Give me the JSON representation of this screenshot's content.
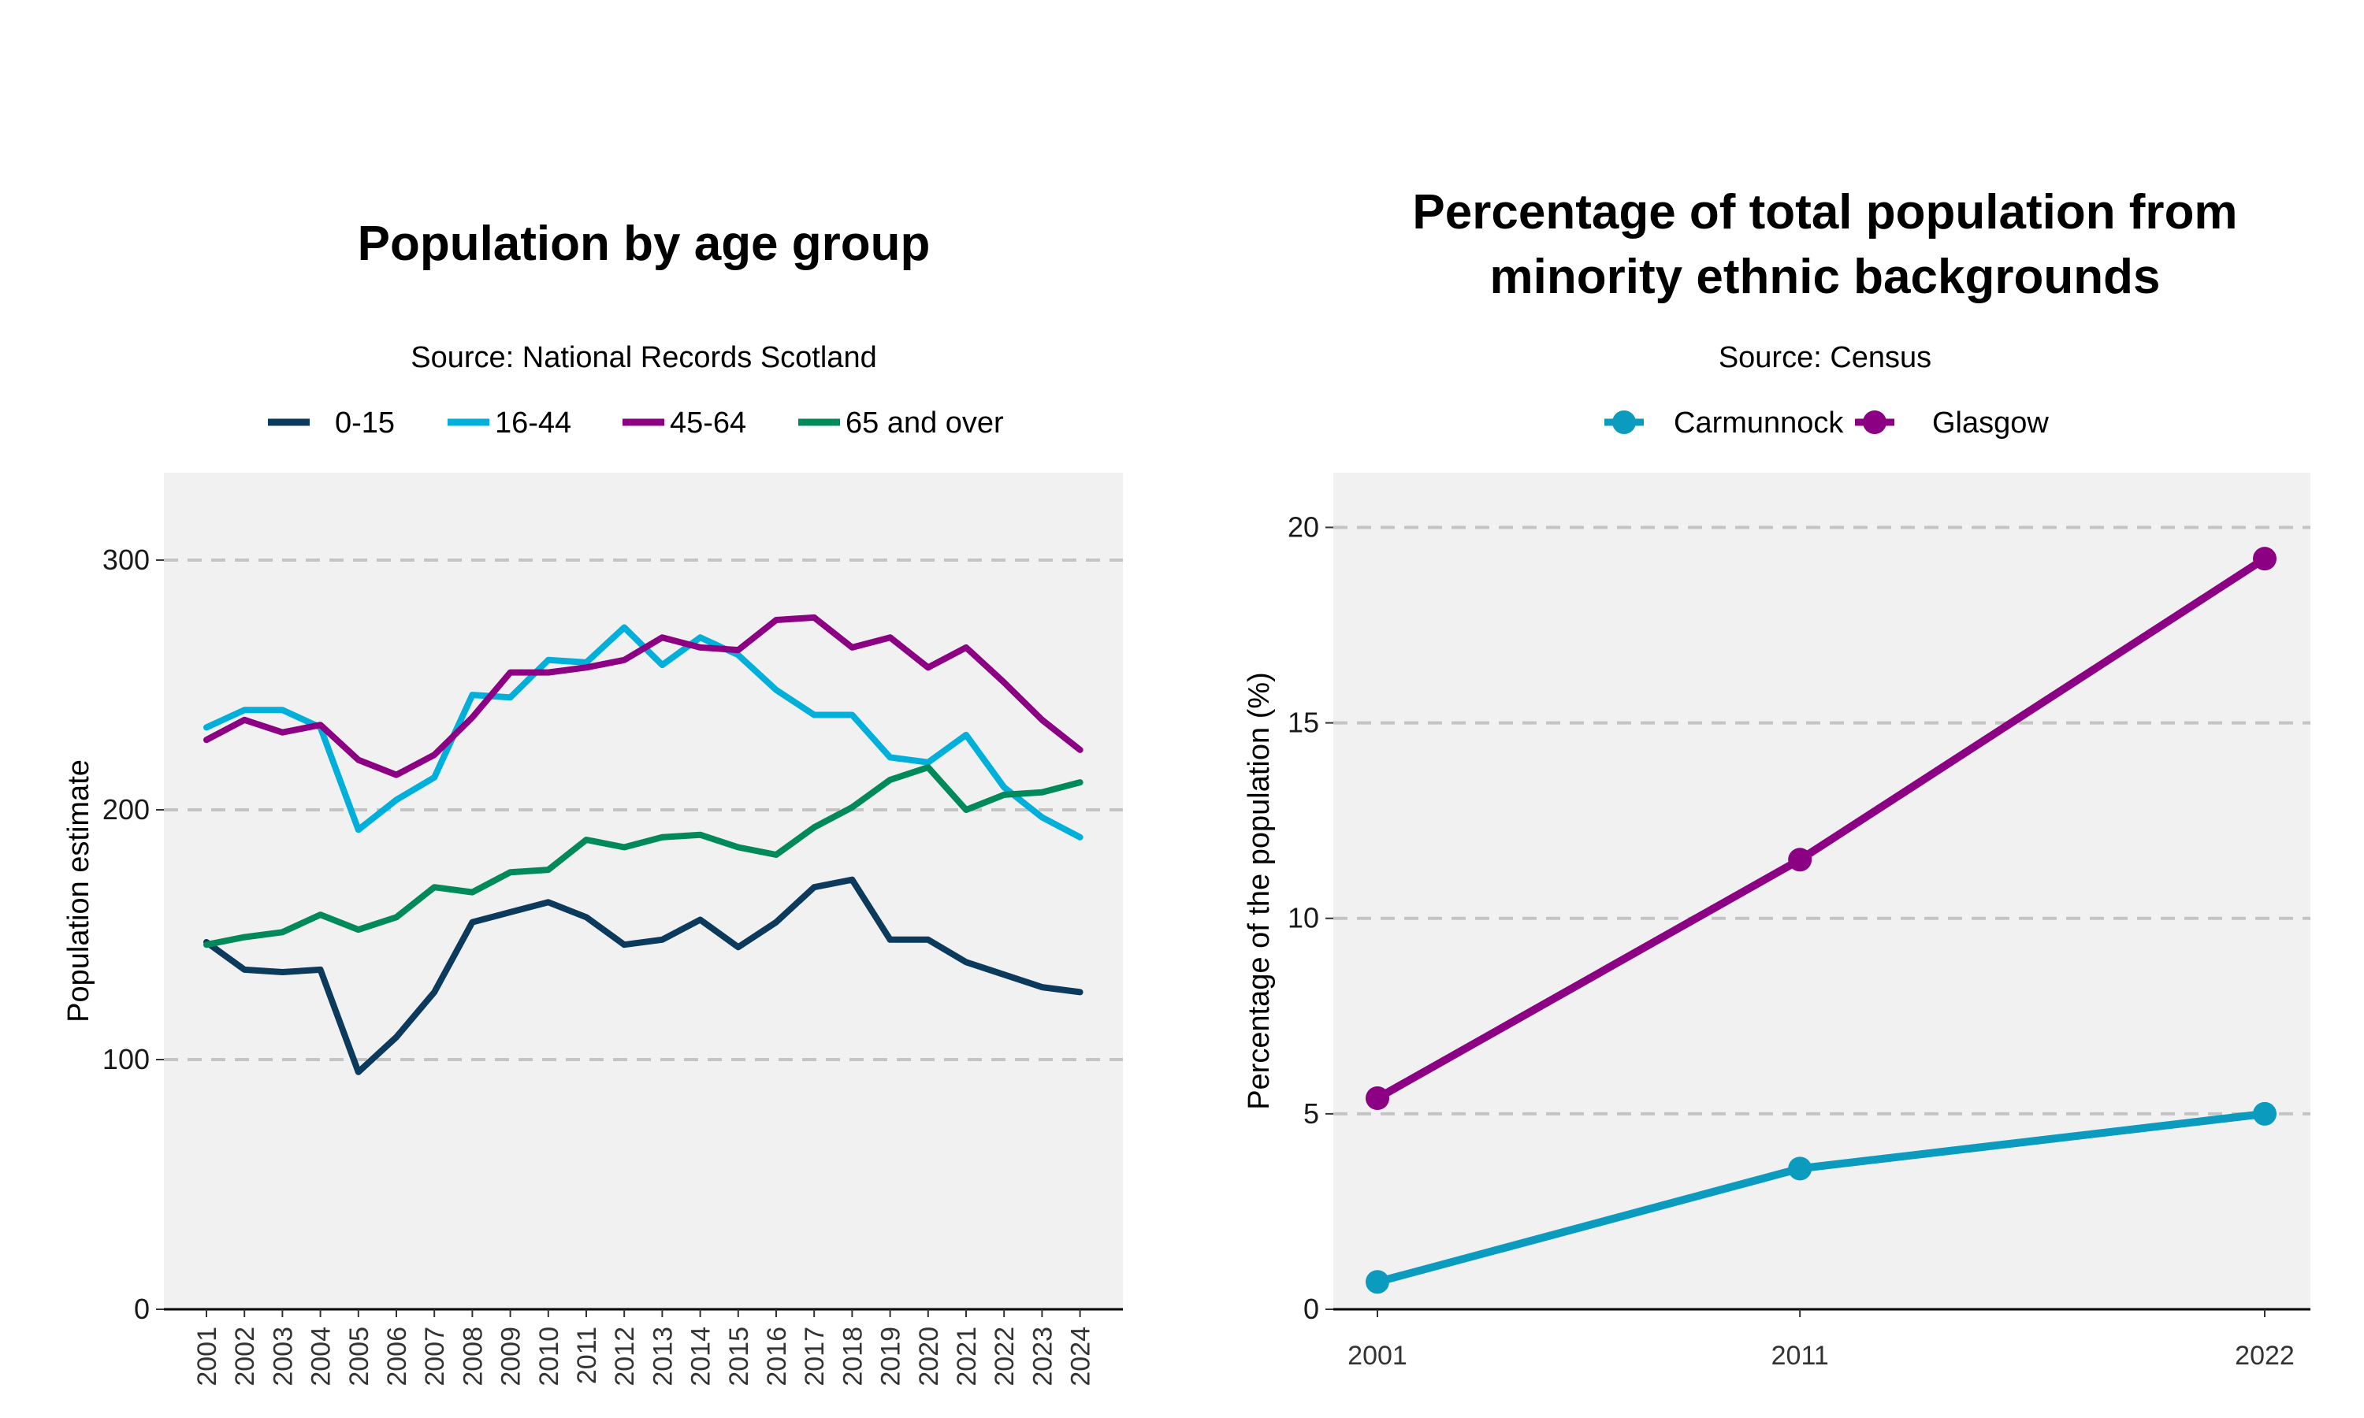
{
  "charts": [
    {
      "title_lines": [
        "Population by age group"
      ],
      "subtitle": "Source: National Records Scotland",
      "ylabel": "Population estimate",
      "legend": [
        "0-15",
        "16-44",
        "45-64",
        "65 and over"
      ]
    },
    {
      "title_lines": [
        "Percentage of total population from",
        "minority ethnic backgrounds"
      ],
      "subtitle": "Source: Census",
      "ylabel": "Percentage of the population (%)",
      "legend": [
        "Carmunnock",
        "Glasgow"
      ]
    }
  ],
  "chart_data": [
    {
      "type": "line",
      "title": "Population by age group",
      "subtitle": "Source: National Records Scotland",
      "xlabel": "",
      "ylabel": "Population estimate",
      "x": [
        "2001",
        "2002",
        "2003",
        "2004",
        "2005",
        "2006",
        "2007",
        "2008",
        "2009",
        "2010",
        "2011",
        "2012",
        "2013",
        "2014",
        "2015",
        "2016",
        "2017",
        "2018",
        "2019",
        "2020",
        "2021",
        "2022",
        "2023",
        "2024"
      ],
      "ylim": [
        0,
        335
      ],
      "yticks": [
        0,
        100,
        200,
        300
      ],
      "grid": "horizontal dashed",
      "legend_position": "top",
      "series": [
        {
          "name": "0-15",
          "color": "#0b3a5c",
          "values": [
            147,
            136,
            135,
            136,
            95,
            109,
            127,
            155,
            159,
            163,
            157,
            146,
            148,
            156,
            145,
            155,
            169,
            172,
            148,
            148,
            139,
            134,
            129,
            127
          ]
        },
        {
          "name": "16-44",
          "color": "#00b0da",
          "values": [
            233,
            240,
            240,
            233,
            192,
            204,
            213,
            246,
            245,
            260,
            259,
            273,
            258,
            269,
            262,
            248,
            238,
            238,
            221,
            219,
            230,
            209,
            197,
            189
          ]
        },
        {
          "name": "45-64",
          "color": "#8c0083",
          "values": [
            228,
            236,
            231,
            234,
            220,
            214,
            222,
            237,
            255,
            255,
            257,
            260,
            269,
            265,
            264,
            276,
            277,
            265,
            269,
            257,
            265,
            251,
            236,
            224
          ]
        },
        {
          "name": "65 and over",
          "color": "#008a5a",
          "values": [
            146,
            149,
            151,
            158,
            152,
            157,
            169,
            167,
            175,
            176,
            188,
            185,
            189,
            190,
            185,
            182,
            193,
            201,
            212,
            217,
            200,
            206,
            207,
            211
          ]
        }
      ]
    },
    {
      "type": "line",
      "title": "Percentage of total population from minority ethnic backgrounds",
      "subtitle": "Source: Census",
      "xlabel": "",
      "ylabel": "Percentage of the population (%)",
      "x": [
        2001,
        2011,
        2022
      ],
      "ylim": [
        0,
        21.4
      ],
      "yticks": [
        0,
        5,
        10,
        15,
        20
      ],
      "grid": "horizontal dashed",
      "legend_position": "top",
      "series": [
        {
          "name": "Carmunnock",
          "color": "#0a9bbf",
          "values": [
            0.7,
            3.6,
            5.0
          ]
        },
        {
          "name": "Glasgow",
          "color": "#8c0083",
          "values": [
            5.4,
            11.5,
            19.2
          ]
        }
      ]
    }
  ]
}
